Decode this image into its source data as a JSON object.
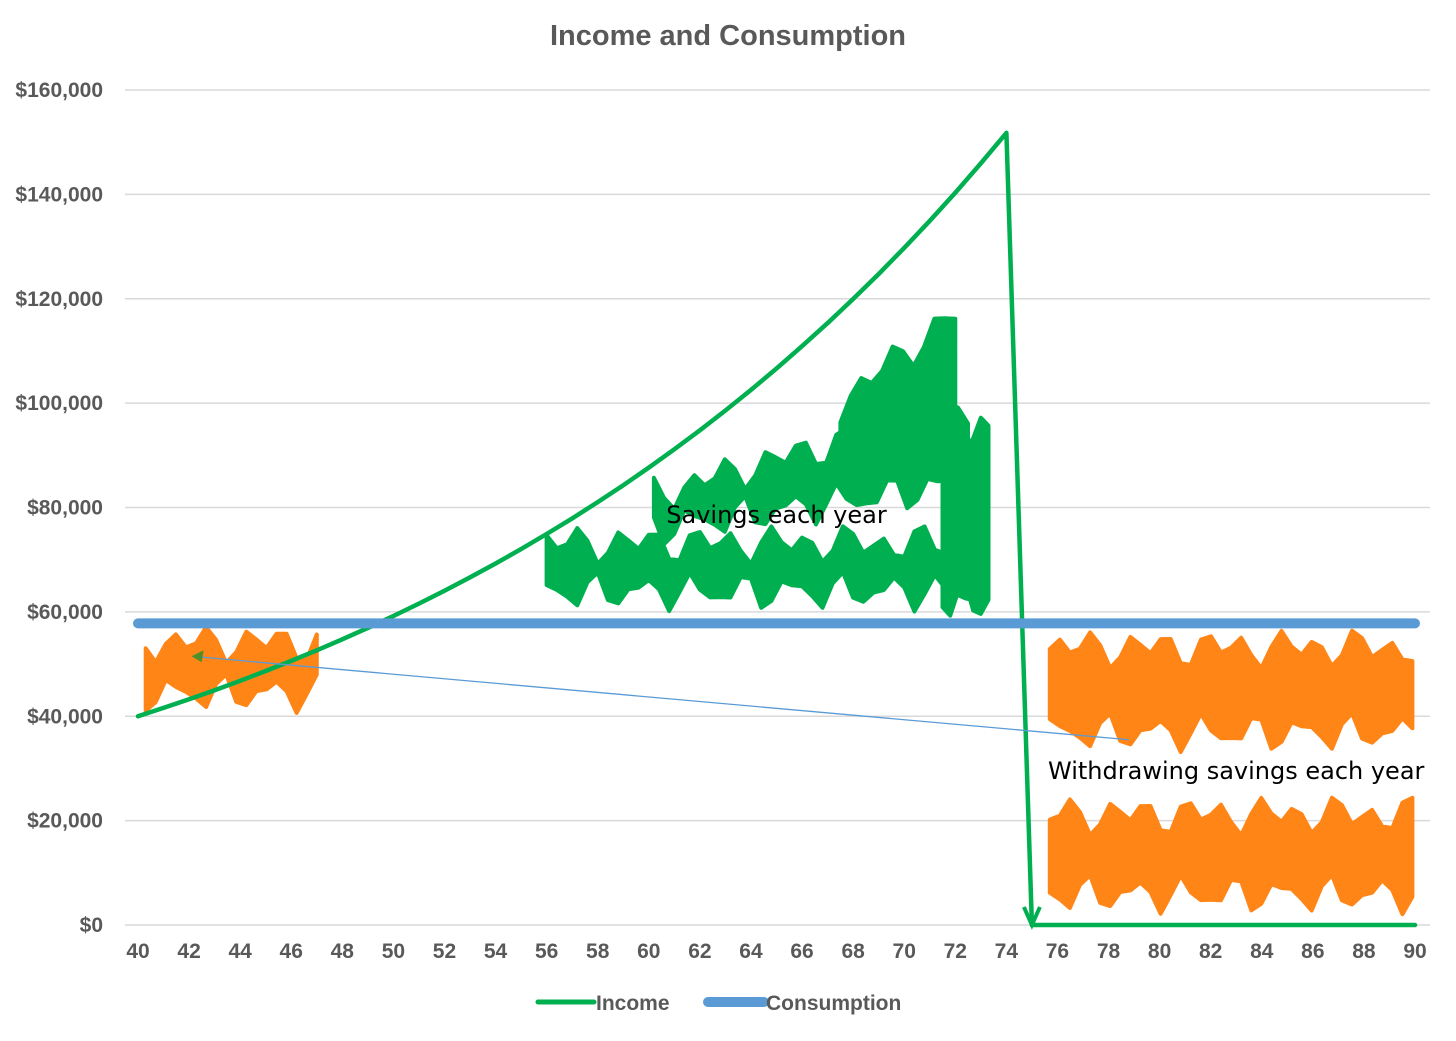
{
  "chart_data": {
    "type": "line",
    "title": "Income and Consumption",
    "xlabel": "",
    "ylabel": "",
    "x": [
      40,
      41,
      42,
      43,
      44,
      45,
      46,
      47,
      48,
      49,
      50,
      51,
      52,
      53,
      54,
      55,
      56,
      57,
      58,
      59,
      60,
      61,
      62,
      63,
      64,
      65,
      66,
      67,
      68,
      69,
      70,
      71,
      72,
      73,
      74,
      75,
      76,
      77,
      78,
      79,
      80,
      81,
      82,
      83,
      84,
      85,
      86,
      87,
      88,
      89,
      90
    ],
    "x_ticks": [
      "40",
      "42",
      "44",
      "46",
      "48",
      "50",
      "52",
      "54",
      "56",
      "58",
      "60",
      "62",
      "64",
      "66",
      "68",
      "70",
      "72",
      "74",
      "76",
      "78",
      "80",
      "82",
      "84",
      "86",
      "88",
      "90"
    ],
    "y_ticks": [
      "$0",
      "$20,000",
      "$40,000",
      "$60,000",
      "$80,000",
      "$100,000",
      "$120,000",
      "$140,000",
      "$160,000"
    ],
    "ylim": [
      0,
      160000
    ],
    "xlim": [
      40,
      90
    ],
    "grid": "horizontal",
    "legend_position": "bottom",
    "series": [
      {
        "name": "Income",
        "color": "#00B050",
        "values": [
          40000,
          41600,
          43264,
          44995,
          46794,
          48666,
          50613,
          52637,
          54743,
          56932,
          59210,
          61578,
          64041,
          66603,
          69267,
          72038,
          74919,
          77916,
          81033,
          84274,
          87645,
          91151,
          94797,
          98589,
          102532,
          106634,
          110899,
          115335,
          119949,
          124747,
          129736,
          134926,
          140323,
          145936,
          151773,
          0,
          0,
          0,
          0,
          0,
          0,
          0,
          0,
          0,
          0,
          0,
          0,
          0,
          0,
          0,
          0
        ]
      },
      {
        "name": "Consumption",
        "color": "#5B9BD5",
        "values": [
          57800,
          57800,
          57800,
          57800,
          57800,
          57800,
          57800,
          57800,
          57800,
          57800,
          57800,
          57800,
          57800,
          57800,
          57800,
          57800,
          57800,
          57800,
          57800,
          57800,
          57800,
          57800,
          57800,
          57800,
          57800,
          57800,
          57800,
          57800,
          57800,
          57800,
          57800,
          57800,
          57800,
          57800,
          57800,
          57800,
          57800,
          57800,
          57800,
          57800,
          57800,
          57800,
          57800,
          57800,
          57800,
          57800,
          57800,
          57800,
          57800,
          57800,
          57800
        ]
      }
    ],
    "annotations": [
      {
        "text": "Savings each year",
        "x": 65,
        "y": 77000
      },
      {
        "text": "Withdrawing savings each year",
        "x": 83,
        "y": 28000
      }
    ],
    "highlight_colors": {
      "savings": "#00B050",
      "withdrawal": "#FF8517",
      "arrow": "#5B9BD5"
    }
  }
}
